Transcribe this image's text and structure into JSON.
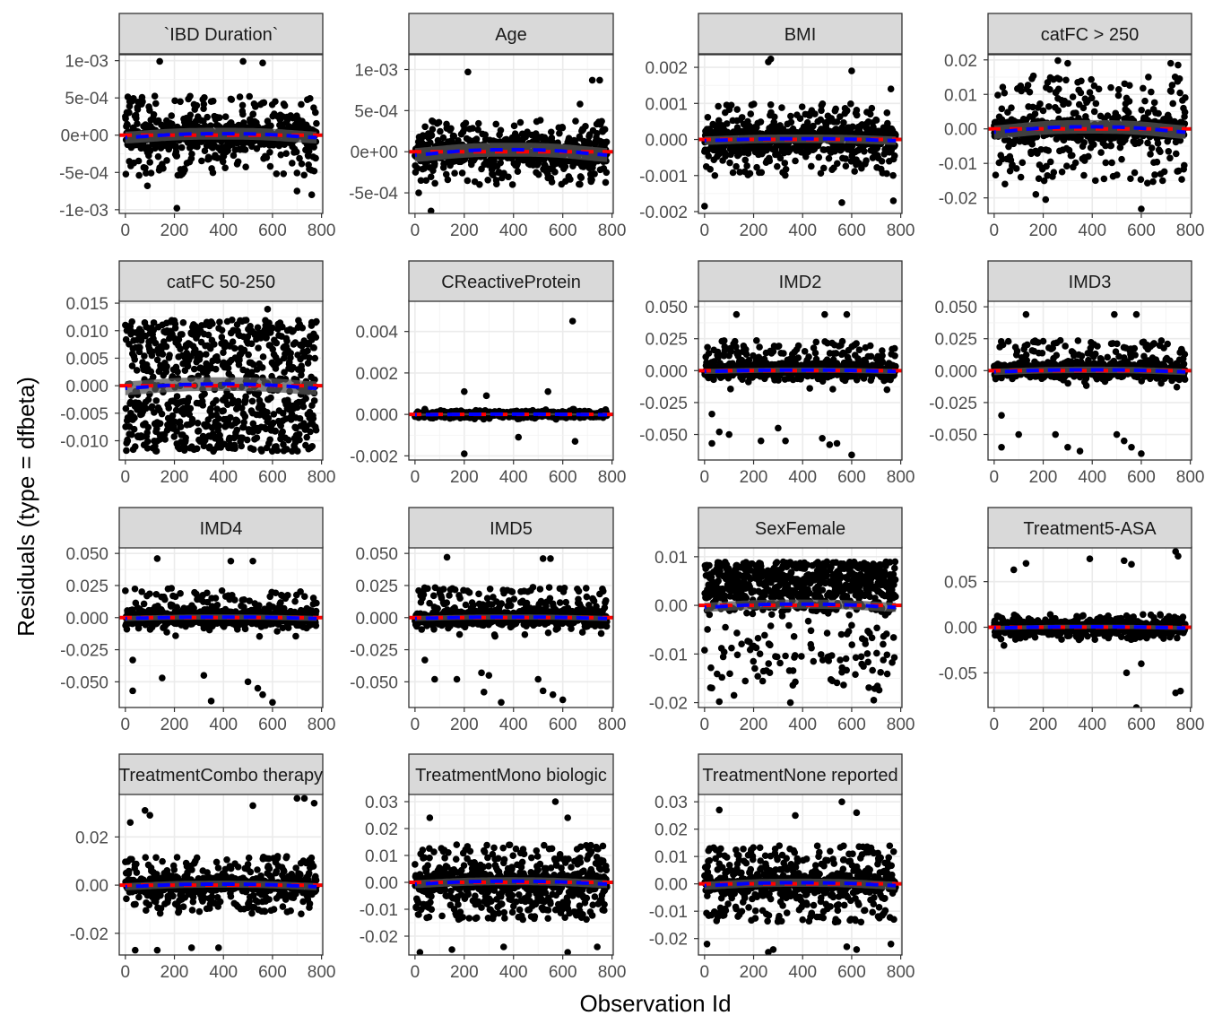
{
  "figure": {
    "xlabel": "Observation Id",
    "ylabel": "Residuals (type = dfbeta)"
  },
  "chart_data": {
    "type": "scatter",
    "facet_layout": "wrap 4 columns",
    "background": "white",
    "grid": true,
    "point_color": "#000000",
    "zero_line_color": "#ff0000",
    "smooth_line_color": "#0000ff",
    "smooth_band_color": "#555555",
    "strip_fill": "#d9d9d9",
    "n_observations": 780,
    "x_range": [
      -25,
      805
    ],
    "x_ticks": [
      0,
      200,
      400,
      600,
      800
    ],
    "x_tick_labels": [
      "0",
      "200",
      "400",
      "600",
      "800"
    ],
    "panels": [
      {
        "title": "`IBD Duration`",
        "ylim": [
          -0.00105,
          0.00108
        ],
        "y_ticks": [
          -0.001,
          -0.0005,
          0,
          0.0005,
          0.001
        ],
        "y_tick_labels": [
          "-1e-03",
          "-5e-04",
          "0e+00",
          "5e-04",
          "1e-03"
        ],
        "core_sd": 9e-05,
        "spread": 0.00055,
        "outlier_fraction": 0.4,
        "outlier_mode": "both",
        "smooth_amplitude": 4e-05,
        "highlights": [
          [
            140,
            0.00099
          ],
          [
            480,
            0.00099
          ],
          [
            560,
            0.00097
          ],
          [
            210,
            -0.00098
          ],
          [
            760,
            -0.0008
          ],
          [
            700,
            -0.00075
          ],
          [
            90,
            -0.00068
          ]
        ]
      },
      {
        "title": "Age",
        "ylim": [
          -0.00075,
          0.00118
        ],
        "y_ticks": [
          -0.0005,
          0,
          0.0005,
          0.001
        ],
        "y_tick_labels": [
          "-5e-04",
          "0e+00",
          "5e-04",
          "1e-03"
        ],
        "core_sd": 7e-05,
        "spread": 0.0004,
        "outlier_fraction": 0.4,
        "outlier_mode": "both",
        "smooth_amplitude": 5e-05,
        "highlights": [
          [
            215,
            0.00097
          ],
          [
            720,
            0.00087
          ],
          [
            750,
            0.00087
          ],
          [
            670,
            0.00058
          ],
          [
            65,
            -0.00072
          ],
          [
            15,
            -0.0005
          ]
        ]
      },
      {
        "title": "BMI",
        "ylim": [
          -0.00205,
          0.00235
        ],
        "y_ticks": [
          -0.002,
          -0.001,
          0,
          0.001,
          0.002
        ],
        "y_tick_labels": [
          "-0.002",
          "-0.001",
          "0.000",
          "0.001",
          "0.002"
        ],
        "core_sd": 0.0002,
        "spread": 0.001,
        "outlier_fraction": 0.35,
        "outlier_mode": "both",
        "smooth_amplitude": 4e-05,
        "highlights": [
          [
            270,
            0.00223
          ],
          [
            260,
            0.00215
          ],
          [
            600,
            0.0019
          ],
          [
            760,
            0.0014
          ],
          [
            0,
            -0.00185
          ],
          [
            560,
            -0.00175
          ],
          [
            770,
            -0.0017
          ]
        ]
      },
      {
        "title": "catFC > 250",
        "ylim": [
          -0.0245,
          0.0215
        ],
        "y_ticks": [
          -0.02,
          -0.01,
          0,
          0.01,
          0.02
        ],
        "y_tick_labels": [
          "-0.02",
          "-0.01",
          "0.00",
          "0.01",
          "0.02"
        ],
        "core_sd": 0.0015,
        "spread": 0.016,
        "outlier_fraction": 0.4,
        "outlier_mode": "both",
        "smooth_amplitude": 0.0012,
        "highlights": [
          [
            260,
            0.0198
          ],
          [
            300,
            0.019
          ],
          [
            720,
            0.019
          ],
          [
            750,
            0.0185
          ],
          [
            600,
            -0.0232
          ],
          [
            210,
            -0.0205
          ],
          [
            170,
            -0.019
          ]
        ]
      },
      {
        "title": "catFC 50-250",
        "ylim": [
          -0.0135,
          0.0155
        ],
        "y_ticks": [
          -0.01,
          -0.005,
          0,
          0.005,
          0.01,
          0.015
        ],
        "y_tick_labels": [
          "-0.010",
          "-0.005",
          "0.000",
          "0.005",
          "0.010",
          "0.015"
        ],
        "core_sd": 0.0015,
        "spread": 0.012,
        "outlier_fraction": 0.85,
        "outlier_mode": "bands",
        "smooth_amplitude": 0.0006,
        "highlights": [
          [
            580,
            0.0139
          ],
          [
            200,
            0.0118
          ],
          [
            760,
            0.0115
          ]
        ]
      },
      {
        "title": "CReactiveProtein",
        "ylim": [
          -0.0022,
          0.0055
        ],
        "y_ticks": [
          -0.002,
          0,
          0.002,
          0.004
        ],
        "y_tick_labels": [
          "-0.002",
          "0.000",
          "0.002",
          "0.004"
        ],
        "core_sd": 8e-05,
        "spread": 0.0002,
        "outlier_fraction": 0.06,
        "outlier_mode": "both",
        "smooth_amplitude": 2e-05,
        "highlights": [
          [
            640,
            0.0045
          ],
          [
            200,
            -0.0019
          ],
          [
            420,
            -0.0011
          ],
          [
            650,
            -0.0013
          ],
          [
            200,
            0.0011
          ],
          [
            290,
            0.0009
          ],
          [
            540,
            0.0011
          ]
        ]
      },
      {
        "title": "IMD2",
        "ylim": [
          -0.07,
          0.055
        ],
        "y_ticks": [
          -0.05,
          -0.025,
          0,
          0.025,
          0.05
        ],
        "y_tick_labels": [
          "-0.050",
          "-0.025",
          "0.000",
          "0.025",
          "0.050"
        ],
        "core_sd": 0.003,
        "spread": 0.025,
        "outlier_fraction": 0.2,
        "outlier_mode": "pos",
        "smooth_amplitude": 0.0008,
        "highlights": [
          [
            130,
            0.044
          ],
          [
            490,
            0.044
          ],
          [
            580,
            0.044
          ],
          [
            30,
            -0.057
          ],
          [
            100,
            -0.05
          ],
          [
            60,
            -0.048
          ],
          [
            230,
            -0.055
          ],
          [
            300,
            -0.045
          ],
          [
            330,
            -0.055
          ],
          [
            480,
            -0.053
          ],
          [
            510,
            -0.058
          ],
          [
            600,
            -0.066
          ],
          [
            540,
            -0.057
          ],
          [
            30,
            -0.034
          ]
        ]
      },
      {
        "title": "IMD3",
        "ylim": [
          -0.07,
          0.055
        ],
        "y_ticks": [
          -0.05,
          -0.025,
          0,
          0.025,
          0.05
        ],
        "y_tick_labels": [
          "-0.050",
          "-0.025",
          "0.000",
          "0.025",
          "0.050"
        ],
        "core_sd": 0.003,
        "spread": 0.025,
        "outlier_fraction": 0.2,
        "outlier_mode": "pos",
        "smooth_amplitude": 0.0012,
        "highlights": [
          [
            130,
            0.044
          ],
          [
            490,
            0.044
          ],
          [
            580,
            0.044
          ],
          [
            30,
            -0.06
          ],
          [
            100,
            -0.05
          ],
          [
            250,
            -0.05
          ],
          [
            300,
            -0.06
          ],
          [
            350,
            -0.063
          ],
          [
            500,
            -0.05
          ],
          [
            530,
            -0.055
          ],
          [
            560,
            -0.06
          ],
          [
            600,
            -0.065
          ],
          [
            30,
            -0.035
          ]
        ]
      },
      {
        "title": "IMD4",
        "ylim": [
          -0.07,
          0.055
        ],
        "y_ticks": [
          -0.05,
          -0.025,
          0,
          0.025,
          0.05
        ],
        "y_tick_labels": [
          "-0.050",
          "-0.025",
          "0.000",
          "0.025",
          "0.050"
        ],
        "core_sd": 0.003,
        "spread": 0.025,
        "outlier_fraction": 0.2,
        "outlier_mode": "pos",
        "smooth_amplitude": 0.0008,
        "highlights": [
          [
            130,
            0.046
          ],
          [
            430,
            0.044
          ],
          [
            520,
            0.044
          ],
          [
            30,
            -0.057
          ],
          [
            150,
            -0.047
          ],
          [
            320,
            -0.045
          ],
          [
            350,
            -0.065
          ],
          [
            500,
            -0.05
          ],
          [
            540,
            -0.055
          ],
          [
            560,
            -0.06
          ],
          [
            600,
            -0.066
          ],
          [
            30,
            -0.033
          ]
        ]
      },
      {
        "title": "IMD5",
        "ylim": [
          -0.07,
          0.055
        ],
        "y_ticks": [
          -0.05,
          -0.025,
          0,
          0.025,
          0.05
        ],
        "y_tick_labels": [
          "-0.050",
          "-0.025",
          "0.000",
          "0.025",
          "0.050"
        ],
        "core_sd": 0.003,
        "spread": 0.025,
        "outlier_fraction": 0.2,
        "outlier_mode": "pos",
        "smooth_amplitude": 0.0008,
        "highlights": [
          [
            130,
            0.047
          ],
          [
            550,
            0.046
          ],
          [
            520,
            0.046
          ],
          [
            40,
            -0.033
          ],
          [
            80,
            -0.048
          ],
          [
            170,
            -0.048
          ],
          [
            270,
            -0.043
          ],
          [
            280,
            -0.058
          ],
          [
            300,
            -0.045
          ],
          [
            500,
            -0.048
          ],
          [
            520,
            -0.057
          ],
          [
            560,
            -0.06
          ],
          [
            600,
            -0.064
          ],
          [
            350,
            -0.066
          ]
        ]
      },
      {
        "title": "SexFemale",
        "ylim": [
          -0.021,
          0.012
        ],
        "y_ticks": [
          -0.02,
          -0.01,
          0,
          0.01
        ],
        "y_tick_labels": [
          "-0.02",
          "-0.01",
          "0.00",
          "0.01"
        ],
        "core_sd": 0.001,
        "spread": 0.0095,
        "outlier_fraction": 0.85,
        "outlier_mode": "female",
        "smooth_amplitude": 0.0005,
        "highlights": [
          [
            60,
            -0.0198
          ],
          [
            350,
            -0.02
          ],
          [
            690,
            -0.0195
          ],
          [
            120,
            -0.0185
          ],
          [
            30,
            -0.017
          ]
        ]
      },
      {
        "title": "Treatment5-ASA",
        "ylim": [
          -0.088,
          0.088
        ],
        "y_ticks": [
          -0.05,
          0,
          0.05
        ],
        "y_tick_labels": [
          "-0.05",
          "0.00",
          "0.05"
        ],
        "core_sd": 0.003,
        "spread": 0.014,
        "outlier_fraction": 0.3,
        "outlier_mode": "both",
        "smooth_amplitude": 0.001,
        "highlights": [
          [
            80,
            0.063
          ],
          [
            130,
            0.07
          ],
          [
            390,
            0.075
          ],
          [
            530,
            0.073
          ],
          [
            560,
            0.069
          ],
          [
            740,
            0.083
          ],
          [
            750,
            0.078
          ],
          [
            580,
            -0.088
          ],
          [
            760,
            -0.07
          ],
          [
            740,
            -0.072
          ],
          [
            540,
            -0.05
          ],
          [
            600,
            -0.04
          ],
          [
            40,
            -0.02
          ]
        ]
      },
      {
        "title": "TreatmentCombo therapy",
        "ylim": [
          -0.029,
          0.038
        ],
        "y_ticks": [
          -0.02,
          0,
          0.02
        ],
        "y_tick_labels": [
          "-0.02",
          "0.00",
          "0.02"
        ],
        "core_sd": 0.0015,
        "spread": 0.012,
        "outlier_fraction": 0.45,
        "outlier_mode": "both",
        "smooth_amplitude": 0.0008,
        "highlights": [
          [
            730,
            0.036
          ],
          [
            700,
            0.036
          ],
          [
            770,
            0.034
          ],
          [
            520,
            0.033
          ],
          [
            20,
            0.026
          ],
          [
            80,
            0.031
          ],
          [
            100,
            0.029
          ],
          [
            40,
            -0.027
          ],
          [
            270,
            -0.026
          ],
          [
            380,
            -0.026
          ],
          [
            130,
            -0.027
          ]
        ]
      },
      {
        "title": "TreatmentMono biologic",
        "ylim": [
          -0.027,
          0.033
        ],
        "y_ticks": [
          -0.02,
          -0.01,
          0,
          0.01,
          0.02,
          0.03
        ],
        "y_tick_labels": [
          "-0.02",
          "-0.01",
          "0.00",
          "0.01",
          "0.02",
          "0.03"
        ],
        "core_sd": 0.0015,
        "spread": 0.014,
        "outlier_fraction": 0.6,
        "outlier_mode": "both",
        "smooth_amplitude": 0.0008,
        "highlights": [
          [
            570,
            0.03
          ],
          [
            60,
            0.024
          ],
          [
            620,
            0.024
          ],
          [
            20,
            -0.026
          ],
          [
            150,
            -0.025
          ],
          [
            360,
            -0.024
          ],
          [
            620,
            -0.026
          ],
          [
            740,
            -0.024
          ]
        ]
      },
      {
        "title": "TreatmentNone reported",
        "ylim": [
          -0.026,
          0.033
        ],
        "y_ticks": [
          -0.02,
          -0.01,
          0,
          0.01,
          0.02,
          0.03
        ],
        "y_tick_labels": [
          "-0.02",
          "-0.01",
          "0.00",
          "0.01",
          "0.02",
          "0.03"
        ],
        "core_sd": 0.0015,
        "spread": 0.014,
        "outlier_fraction": 0.55,
        "outlier_mode": "both",
        "smooth_amplitude": 0.0008,
        "highlights": [
          [
            560,
            0.03
          ],
          [
            60,
            0.027
          ],
          [
            620,
            0.026
          ],
          [
            370,
            0.025
          ],
          [
            10,
            -0.022
          ],
          [
            260,
            -0.025
          ],
          [
            280,
            -0.024
          ],
          [
            580,
            -0.023
          ],
          [
            620,
            -0.024
          ],
          [
            760,
            -0.022
          ]
        ]
      }
    ]
  }
}
